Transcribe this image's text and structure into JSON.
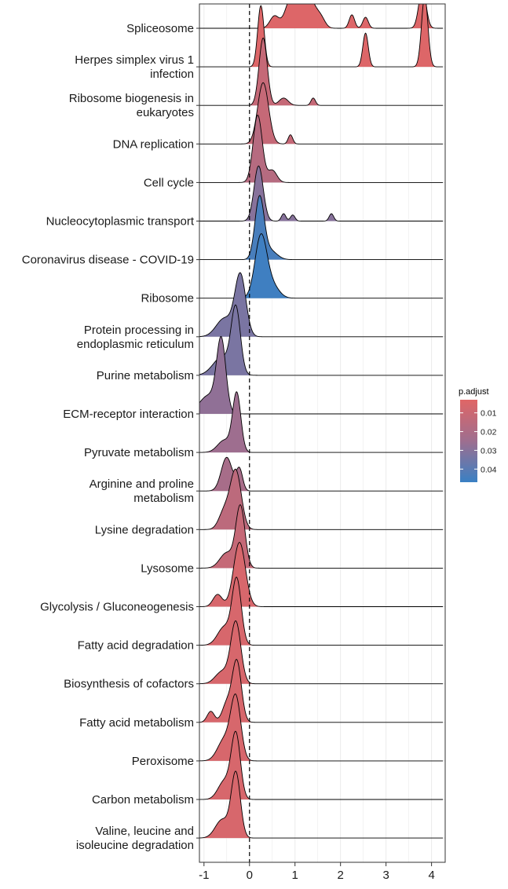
{
  "chart_data": {
    "type": "ridgeline",
    "title": "",
    "xlabel": "",
    "ylabel": "",
    "xlim": [
      -1.1,
      4.3
    ],
    "x_ticks": [
      -1,
      0,
      1,
      2,
      3,
      4
    ],
    "x_tick_labels": [
      "-1",
      "0",
      "1",
      "2",
      "3",
      "4"
    ],
    "reference_line_x": 0,
    "grid": true,
    "legend": {
      "title": "p.adjust",
      "placement": "right",
      "ticks": [
        0.01,
        0.02,
        0.03,
        0.04
      ],
      "tick_labels": [
        "0.01",
        "0.02",
        "0.03",
        "0.04"
      ],
      "range": [
        0.003,
        0.047
      ],
      "color_low": "#E06666",
      "color_high": "#3A80C3"
    },
    "categories": [
      {
        "label": [
          "Spliceosome"
        ],
        "p_adjust": 0.004,
        "peaks": [
          [
            0.55,
            0.1,
            0.2
          ],
          [
            0.9,
            0.12,
            0.45
          ],
          [
            1.1,
            0.1,
            0.65
          ],
          [
            1.35,
            0.1,
            0.4
          ],
          [
            1.55,
            0.1,
            0.2
          ],
          [
            2.25,
            0.06,
            0.22
          ],
          [
            2.55,
            0.06,
            0.18
          ],
          [
            3.8,
            0.08,
            0.65
          ]
        ]
      },
      {
        "label": [
          "Herpes simplex virus 1",
          "infection"
        ],
        "p_adjust": 0.004,
        "peaks": [
          [
            0.25,
            0.07,
            1.0
          ],
          [
            2.55,
            0.06,
            0.55
          ],
          [
            3.85,
            0.07,
            1.15
          ]
        ]
      },
      {
        "label": [
          "Ribosome biogenesis in",
          "eukaryotes"
        ],
        "p_adjust": 0.012,
        "peaks": [
          [
            0.3,
            0.09,
            1.1
          ],
          [
            0.75,
            0.1,
            0.12
          ],
          [
            1.4,
            0.05,
            0.12
          ]
        ]
      },
      {
        "label": [
          "DNA replication"
        ],
        "p_adjust": 0.012,
        "peaks": [
          [
            0.3,
            0.12,
            1.0
          ],
          [
            0.9,
            0.05,
            0.15
          ]
        ]
      },
      {
        "label": [
          "Cell cycle"
        ],
        "p_adjust": 0.017,
        "peaks": [
          [
            0.18,
            0.1,
            1.1
          ],
          [
            0.5,
            0.1,
            0.2
          ]
        ]
      },
      {
        "label": [
          "Nucleocytoplasmic transport"
        ],
        "p_adjust": 0.03,
        "peaks": [
          [
            0.2,
            0.1,
            0.9
          ],
          [
            0.75,
            0.05,
            0.12
          ],
          [
            0.95,
            0.05,
            0.1
          ],
          [
            1.8,
            0.05,
            0.12
          ]
        ]
      },
      {
        "label": [
          "Coronavirus disease - COVID-19"
        ],
        "p_adjust": 0.044,
        "peaks": [
          [
            0.22,
            0.1,
            1.0
          ],
          [
            0.45,
            0.15,
            0.15
          ]
        ]
      },
      {
        "label": [
          "Ribosome"
        ],
        "p_adjust": 0.046,
        "peaks": [
          [
            0.25,
            0.13,
            1.0
          ],
          [
            0.5,
            0.15,
            0.2
          ]
        ]
      },
      {
        "label": [
          "Protein processing in",
          "endoplasmic reticulum"
        ],
        "p_adjust": 0.033,
        "peaks": [
          [
            -0.2,
            0.12,
            1.0
          ],
          [
            -0.55,
            0.18,
            0.3
          ]
        ]
      },
      {
        "label": [
          "Purine metabolism"
        ],
        "p_adjust": 0.033,
        "peaks": [
          [
            -0.3,
            0.1,
            1.05
          ],
          [
            -0.6,
            0.2,
            0.3
          ]
        ]
      },
      {
        "label": [
          "ECM-receptor interaction"
        ],
        "p_adjust": 0.028,
        "peaks": [
          [
            -0.62,
            0.1,
            1.15
          ],
          [
            -0.9,
            0.2,
            0.3
          ]
        ]
      },
      {
        "label": [
          "Pyruvate metabolism"
        ],
        "p_adjust": 0.025,
        "peaks": [
          [
            -0.28,
            0.09,
            0.95
          ],
          [
            -0.55,
            0.15,
            0.2
          ]
        ]
      },
      {
        "label": [
          "Arginine and proline",
          "metabolism"
        ],
        "p_adjust": 0.022,
        "peaks": [
          [
            -0.5,
            0.12,
            0.55
          ],
          [
            -0.22,
            0.07,
            0.35
          ]
        ]
      },
      {
        "label": [
          "Lysine degradation"
        ],
        "p_adjust": 0.015,
        "peaks": [
          [
            -0.3,
            0.12,
            0.95
          ],
          [
            -0.55,
            0.12,
            0.3
          ]
        ]
      },
      {
        "label": [
          "Lysosome"
        ],
        "p_adjust": 0.012,
        "peaks": [
          [
            -0.2,
            0.1,
            1.0
          ],
          [
            -0.5,
            0.15,
            0.25
          ]
        ]
      },
      {
        "label": [
          "Glycolysis / Gluconeogenesis"
        ],
        "p_adjust": 0.006,
        "peaks": [
          [
            -0.22,
            0.13,
            1.05
          ],
          [
            -0.7,
            0.1,
            0.2
          ]
        ]
      },
      {
        "label": [
          "Fatty acid degradation"
        ],
        "p_adjust": 0.006,
        "peaks": [
          [
            -0.28,
            0.1,
            1.05
          ],
          [
            -0.55,
            0.15,
            0.3
          ]
        ]
      },
      {
        "label": [
          "Biosynthesis of cofactors"
        ],
        "p_adjust": 0.006,
        "peaks": [
          [
            -0.3,
            0.11,
            1.0
          ],
          [
            -0.6,
            0.15,
            0.2
          ]
        ]
      },
      {
        "label": [
          "Fatty acid metabolism"
        ],
        "p_adjust": 0.006,
        "peaks": [
          [
            -0.28,
            0.1,
            1.0
          ],
          [
            -0.85,
            0.08,
            0.18
          ],
          [
            -0.5,
            0.1,
            0.3
          ]
        ]
      },
      {
        "label": [
          "Peroxisome"
        ],
        "p_adjust": 0.006,
        "peaks": [
          [
            -0.3,
            0.11,
            1.0
          ],
          [
            -0.55,
            0.15,
            0.35
          ]
        ]
      },
      {
        "label": [
          "Carbon metabolism"
        ],
        "p_adjust": 0.006,
        "peaks": [
          [
            -0.3,
            0.1,
            1.05
          ],
          [
            -0.55,
            0.14,
            0.3
          ]
        ]
      },
      {
        "label": [
          "Valine, leucine and",
          "isoleucine degradation"
        ],
        "p_adjust": 0.006,
        "peaks": [
          [
            -0.3,
            0.1,
            1.05
          ],
          [
            -0.6,
            0.15,
            0.3
          ]
        ]
      }
    ]
  }
}
